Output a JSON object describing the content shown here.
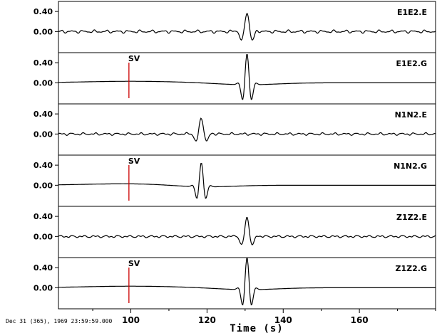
{
  "chart_data": {
    "type": "line",
    "x_range": [
      81,
      180
    ],
    "y_range": [
      -0.42,
      0.6
    ],
    "y_ticks": [
      0.4,
      0.0
    ],
    "y_tick_labels": [
      "0.40",
      "0.00"
    ],
    "x_ticks": [
      100,
      120,
      140,
      160
    ],
    "x_tick_labels": [
      "100",
      "120",
      "140",
      "160"
    ],
    "xlabel": "Time (s)",
    "timestamp": "Dec 31 (365), 1969 23:59:59.000",
    "marker_color": "#cc0000",
    "trace_color": "#000000",
    "panels": [
      {
        "name": "E1E2.E",
        "pulse": 130.5,
        "amp": 0.38,
        "noise": 0.035,
        "sv": null,
        "kind": "obs"
      },
      {
        "name": "E1E2.G",
        "pulse": 130.5,
        "amp": 0.62,
        "noise": 0.0,
        "sv": 99.5,
        "kind": "syn"
      },
      {
        "name": "N1N2.E",
        "pulse": 118.5,
        "amp": 0.32,
        "noise": 0.03,
        "sv": null,
        "kind": "obs"
      },
      {
        "name": "N1N2.G",
        "pulse": 118.5,
        "amp": 0.48,
        "noise": 0.0,
        "sv": 99.5,
        "kind": "syn"
      },
      {
        "name": "Z1Z2.E",
        "pulse": 130.5,
        "amp": 0.38,
        "noise": 0.03,
        "sv": null,
        "kind": "obs"
      },
      {
        "name": "Z1Z2.G",
        "pulse": 130.5,
        "amp": 0.64,
        "noise": 0.0,
        "sv": 99.5,
        "kind": "syn"
      }
    ],
    "sv_label": "SV"
  }
}
